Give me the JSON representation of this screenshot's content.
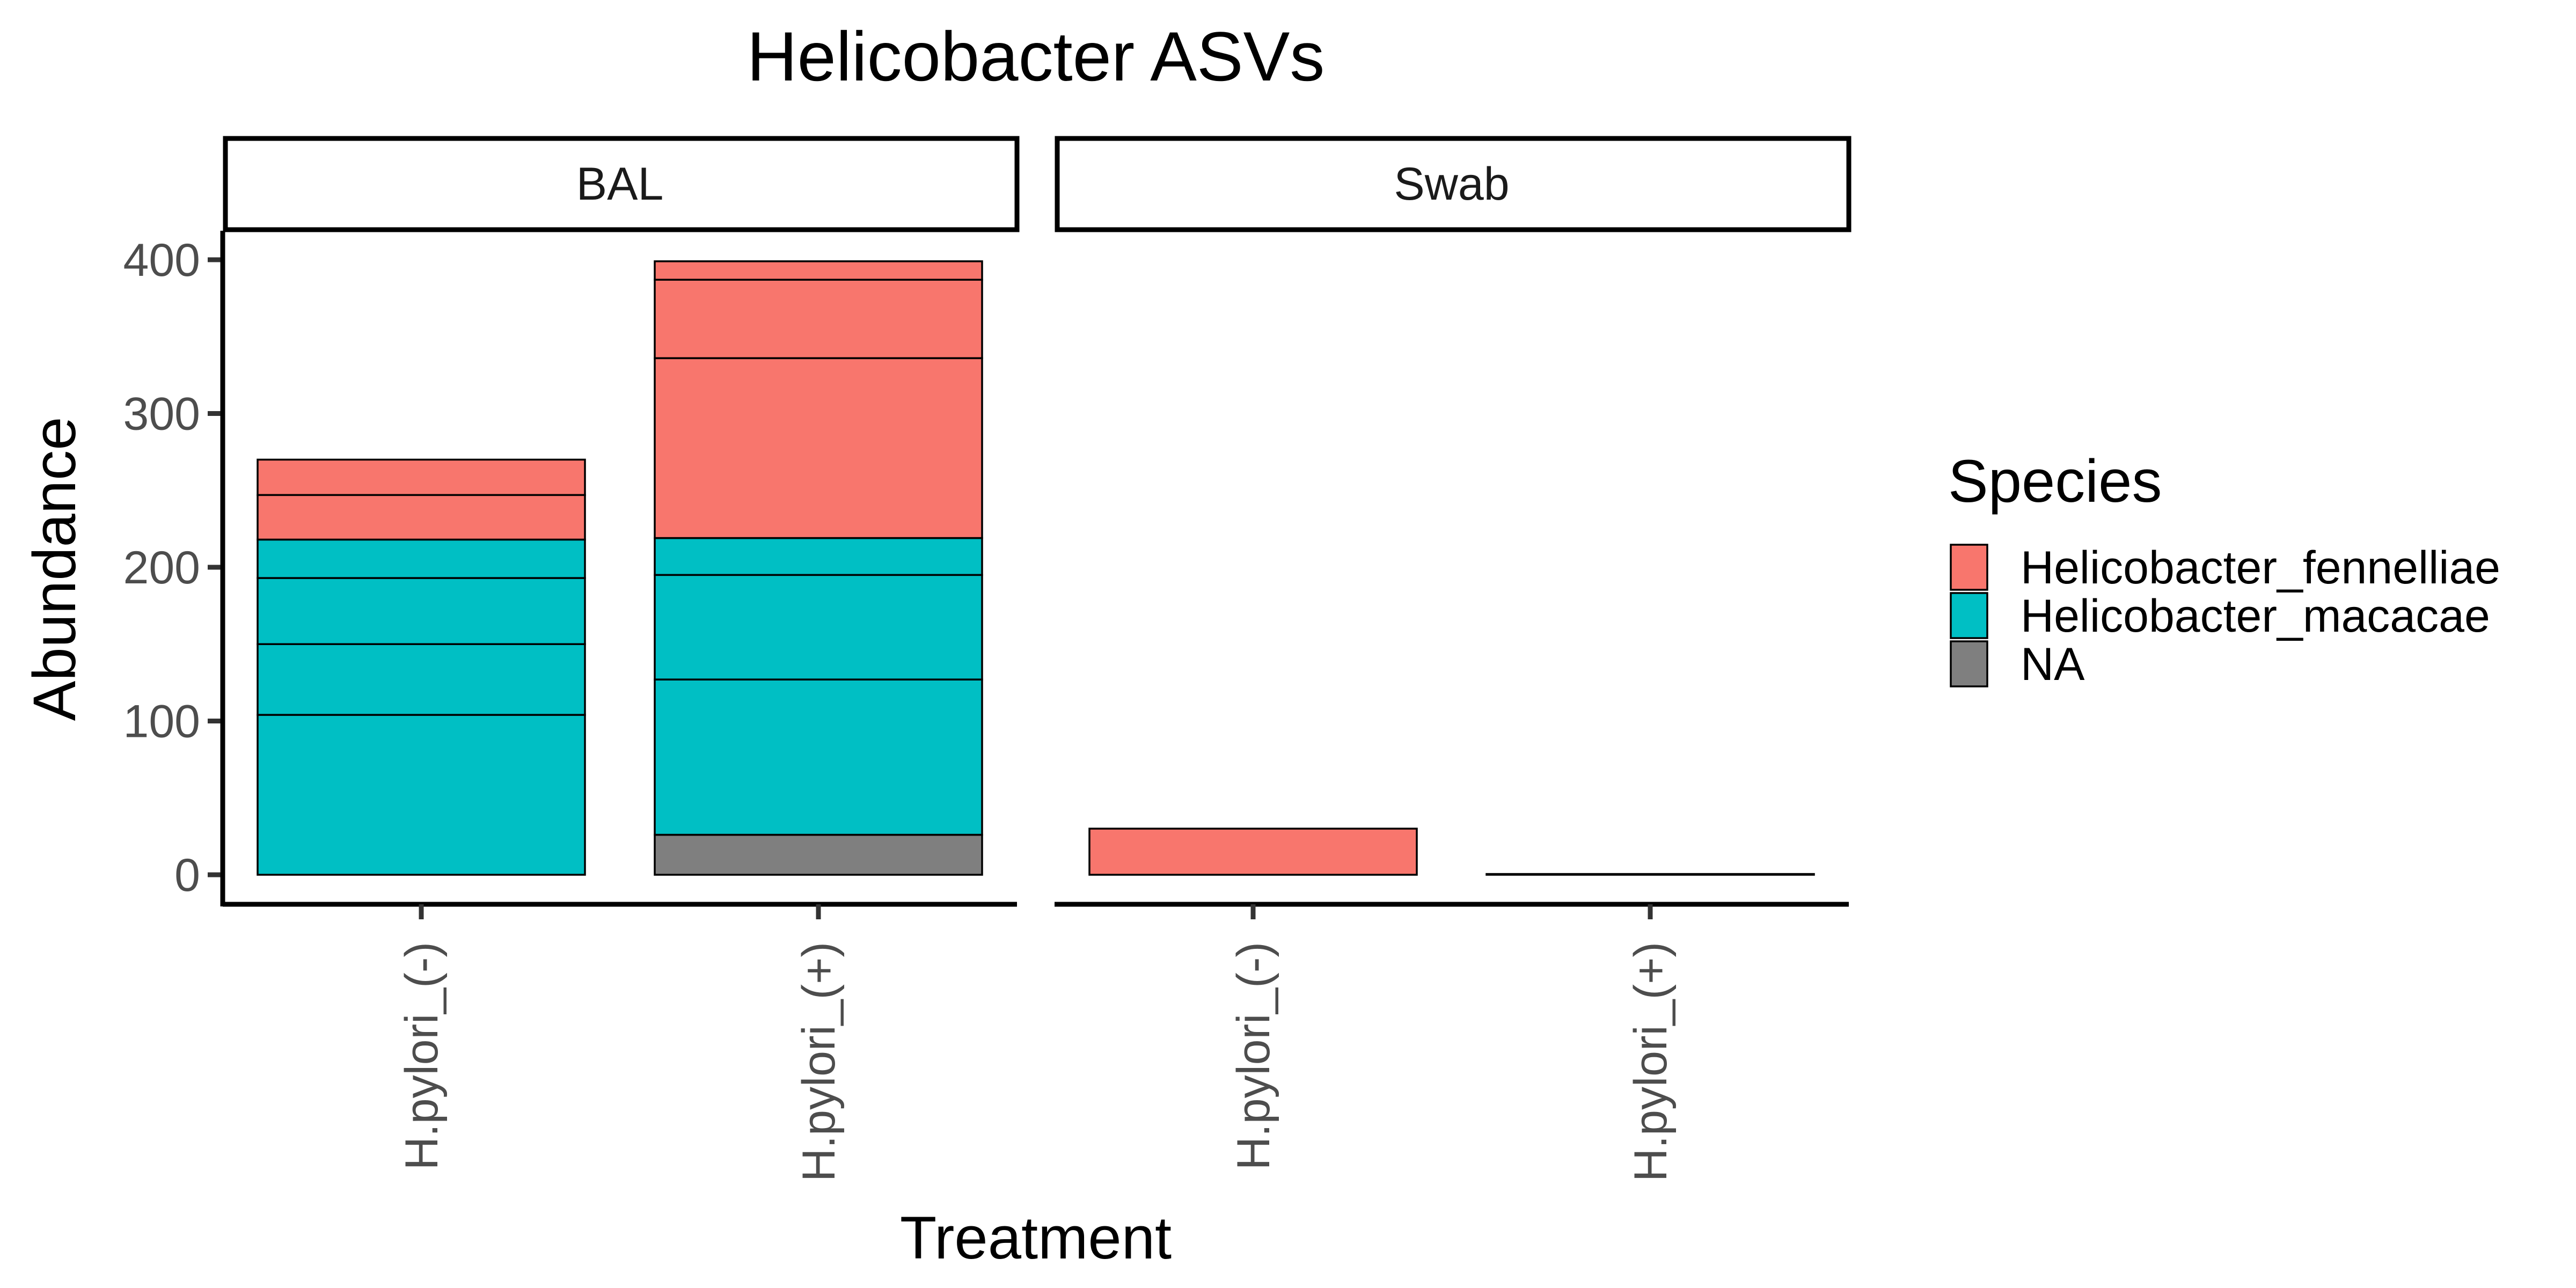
{
  "chart_data": {
    "type": "bar",
    "stacked": true,
    "title": "Helicobacter ASVs",
    "xlabel": "Treatment",
    "ylabel": "Abundance",
    "ylim": [
      0,
      420
    ],
    "yticks": [
      "0",
      "100",
      "200",
      "300",
      "400"
    ],
    "grid": false,
    "legend": {
      "title": "Species",
      "position": "right",
      "entries": [
        {
          "label": "Helicobacter_fennelliae",
          "color": "#F8766D"
        },
        {
          "label": "Helicobacter_macacae",
          "color": "#00BFC4"
        },
        {
          "label": "NA",
          "color": "#7F7F7F"
        }
      ]
    },
    "facets": [
      {
        "label": "BAL",
        "bars": [
          {
            "category": "H.pylori_(-)",
            "segments": [
              {
                "species": 1,
                "value": 104
              },
              {
                "species": 1,
                "value": 46
              },
              {
                "species": 1,
                "value": 43
              },
              {
                "species": 1,
                "value": 25
              },
              {
                "species": 0,
                "value": 29
              },
              {
                "species": 0,
                "value": 23
              }
            ]
          },
          {
            "category": "H.pylori_(+)",
            "segments": [
              {
                "species": 2,
                "value": 26
              },
              {
                "species": 1,
                "value": 101
              },
              {
                "species": 1,
                "value": 68
              },
              {
                "species": 1,
                "value": 24
              },
              {
                "species": 0,
                "value": 117
              },
              {
                "species": 0,
                "value": 51
              },
              {
                "species": 0,
                "value": 12
              }
            ]
          }
        ]
      },
      {
        "label": "Swab",
        "bars": [
          {
            "category": "H.pylori_(-)",
            "segments": [
              {
                "species": 0,
                "value": 30
              }
            ]
          },
          {
            "category": "H.pylori_(+)",
            "segments": [
              {
                "species": 0,
                "value": 0.5
              }
            ]
          }
        ]
      }
    ]
  }
}
